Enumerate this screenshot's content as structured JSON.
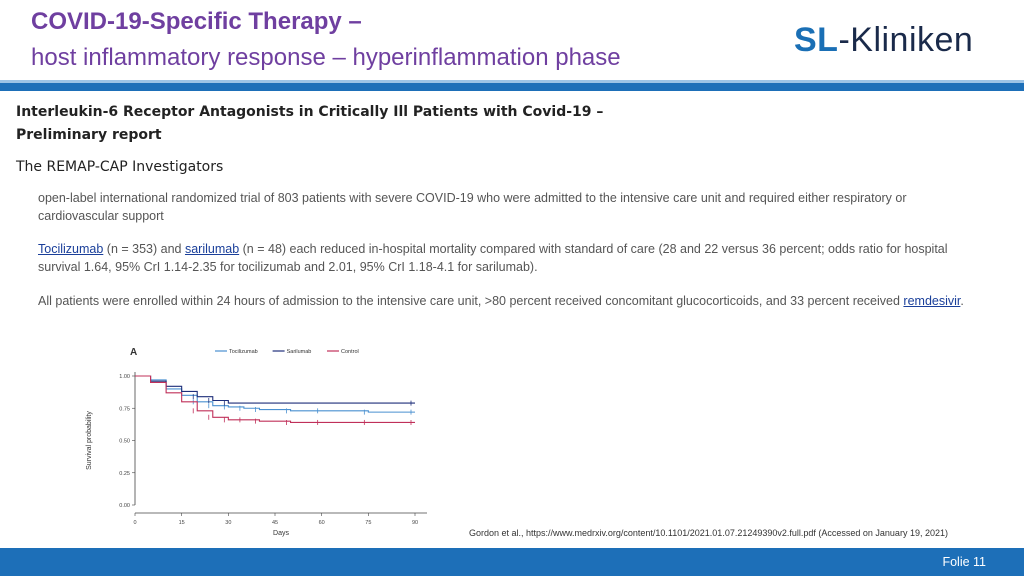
{
  "header": {
    "title_line1": "COVID-19-Specific Therapy –",
    "title_line2": "host inflammatory response – hyperinflammation phase",
    "logo_prefix": "SL",
    "logo_suffix": "-Kliniken"
  },
  "paper": {
    "title_line1": "Interleukin-6 Receptor Antagonists in Critically Ill Patients with Covid-19 –",
    "title_line2": "Preliminary report",
    "authors": "The REMAP-CAP Investigators"
  },
  "paragraphs": {
    "p1": "open-label international randomized trial of 803 patients with severe COVID-19 who were admitted to the intensive care unit and required either respiratory or cardiovascular support",
    "p2_link1": "Tocilizumab",
    "p2_mid1": " (n = 353) and ",
    "p2_link2": "sarilumab",
    "p2_rest": " (n = 48) each reduced in-hospital mortality compared with standard of care (28 and 22 versus 36 percent; odds ratio for hospital survival 1.64, 95% CrI 1.14-2.35 for tocilizumab and 2.01, 95% CrI 1.18-4.1 for sarilumab).",
    "p3_text": "All patients were enrolled within 24 hours of admission to the intensive care unit, >80 percent received concomitant glucocorticoids, and 33 percent received ",
    "p3_link": "remdesivir",
    "p3_end": "."
  },
  "chart_data": {
    "type": "line",
    "panel_label": "A",
    "xlabel": "Days",
    "ylabel": "Survival probability",
    "xlim": [
      0,
      90
    ],
    "ylim": [
      0,
      1
    ],
    "xticks": [
      "0",
      "15",
      "30",
      "45",
      "60",
      "75",
      "90"
    ],
    "yticks": [
      "0.00",
      "0.25",
      "0.50",
      "0.75",
      "1.00"
    ],
    "legend_position": "top",
    "series": [
      {
        "name": "Tocilizumab",
        "color": "#4a90d0",
        "x": [
          0,
          5,
          10,
          15,
          20,
          25,
          30,
          35,
          40,
          50,
          60,
          75,
          90
        ],
        "y": [
          1.0,
          0.97,
          0.9,
          0.85,
          0.8,
          0.77,
          0.76,
          0.75,
          0.74,
          0.73,
          0.73,
          0.72,
          0.72
        ]
      },
      {
        "name": "Sarilumab",
        "color": "#1f2f7a",
        "x": [
          0,
          5,
          10,
          15,
          20,
          25,
          30,
          90
        ],
        "y": [
          1.0,
          0.96,
          0.92,
          0.88,
          0.84,
          0.81,
          0.79,
          0.79
        ]
      },
      {
        "name": "Control",
        "color": "#c0305a",
        "x": [
          0,
          5,
          10,
          15,
          20,
          25,
          30,
          35,
          40,
          50,
          60,
          75,
          90
        ],
        "y": [
          1.0,
          0.95,
          0.87,
          0.8,
          0.73,
          0.68,
          0.66,
          0.66,
          0.65,
          0.64,
          0.64,
          0.64,
          0.64
        ]
      }
    ]
  },
  "citation": "Gordon et al., https://www.medrxiv.org/content/10.1101/2021.01.07.21249390v2.full.pdf (Accessed on January 19, 2021)",
  "footer": {
    "folio_label": "Folie  11"
  }
}
